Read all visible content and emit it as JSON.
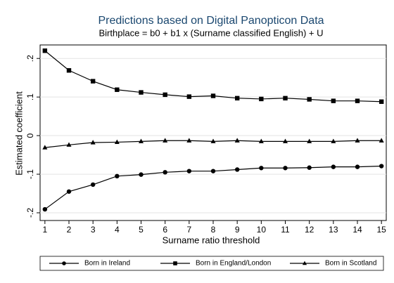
{
  "chart_data": {
    "type": "line",
    "title": "Predictions based on Digital Panopticon Data",
    "subtitle": "Birthplace = b0 + b1 x (Surname classified English) + U",
    "x_label": "Surname ratio threshold",
    "y_label": "Estimated coefficient",
    "x": [
      1,
      2,
      3,
      4,
      5,
      6,
      7,
      8,
      9,
      10,
      11,
      12,
      13,
      14,
      15
    ],
    "xlim": [
      0.8,
      15.2
    ],
    "xticks": [
      1,
      2,
      3,
      4,
      5,
      6,
      7,
      8,
      9,
      10,
      11,
      12,
      13,
      14,
      15
    ],
    "ylim": [
      -0.22,
      0.235
    ],
    "yticks": [
      {
        "value": -0.2,
        "label": "-.2"
      },
      {
        "value": -0.1,
        "label": "-.1"
      },
      0,
      {
        "value": 0.1,
        "label": ".1"
      },
      {
        "value": 0.2,
        "label": ".2"
      }
    ],
    "grid": true,
    "legend_position": "bottom",
    "series": [
      {
        "name": "Born in Ireland",
        "color": "#000000",
        "marker": "circle",
        "values": [
          -0.191,
          -0.145,
          -0.127,
          -0.105,
          -0.101,
          -0.095,
          -0.092,
          -0.092,
          -0.088,
          -0.084,
          -0.084,
          -0.083,
          -0.081,
          -0.081,
          -0.079
        ]
      },
      {
        "name": "Born in England/London",
        "color": "#000000",
        "marker": "square",
        "values": [
          0.22,
          0.169,
          0.141,
          0.119,
          0.112,
          0.106,
          0.101,
          0.103,
          0.097,
          0.095,
          0.097,
          0.094,
          0.09,
          0.09,
          0.088
        ]
      },
      {
        "name": "Born in Scotland",
        "color": "#000000",
        "marker": "triangle",
        "values": [
          -0.031,
          -0.024,
          -0.018,
          -0.017,
          -0.015,
          -0.013,
          -0.013,
          -0.015,
          -0.013,
          -0.015,
          -0.015,
          -0.015,
          -0.015,
          -0.013,
          -0.013
        ]
      }
    ]
  }
}
